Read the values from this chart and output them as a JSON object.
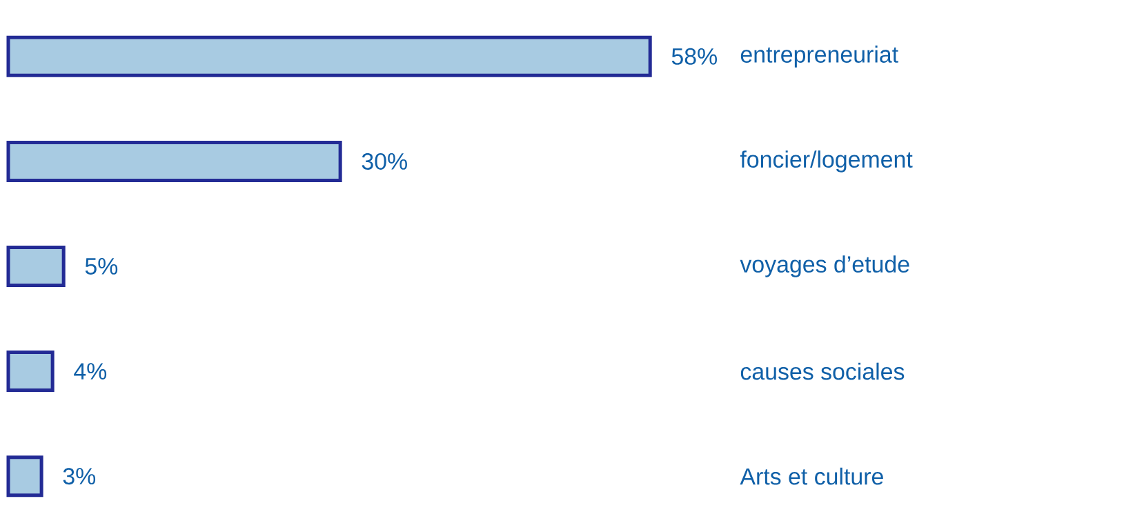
{
  "chart_data": {
    "type": "bar",
    "orientation": "horizontal",
    "categories": [
      "entrepreneuriat",
      "foncier/logement",
      "voyages d’etude",
      "causes sociales",
      "Arts et culture"
    ],
    "values": [
      58,
      30,
      5,
      4,
      3
    ],
    "value_labels": [
      "58%",
      "30%",
      "5%",
      "4%",
      "3%"
    ],
    "color": "#a8cbe2"
  }
}
